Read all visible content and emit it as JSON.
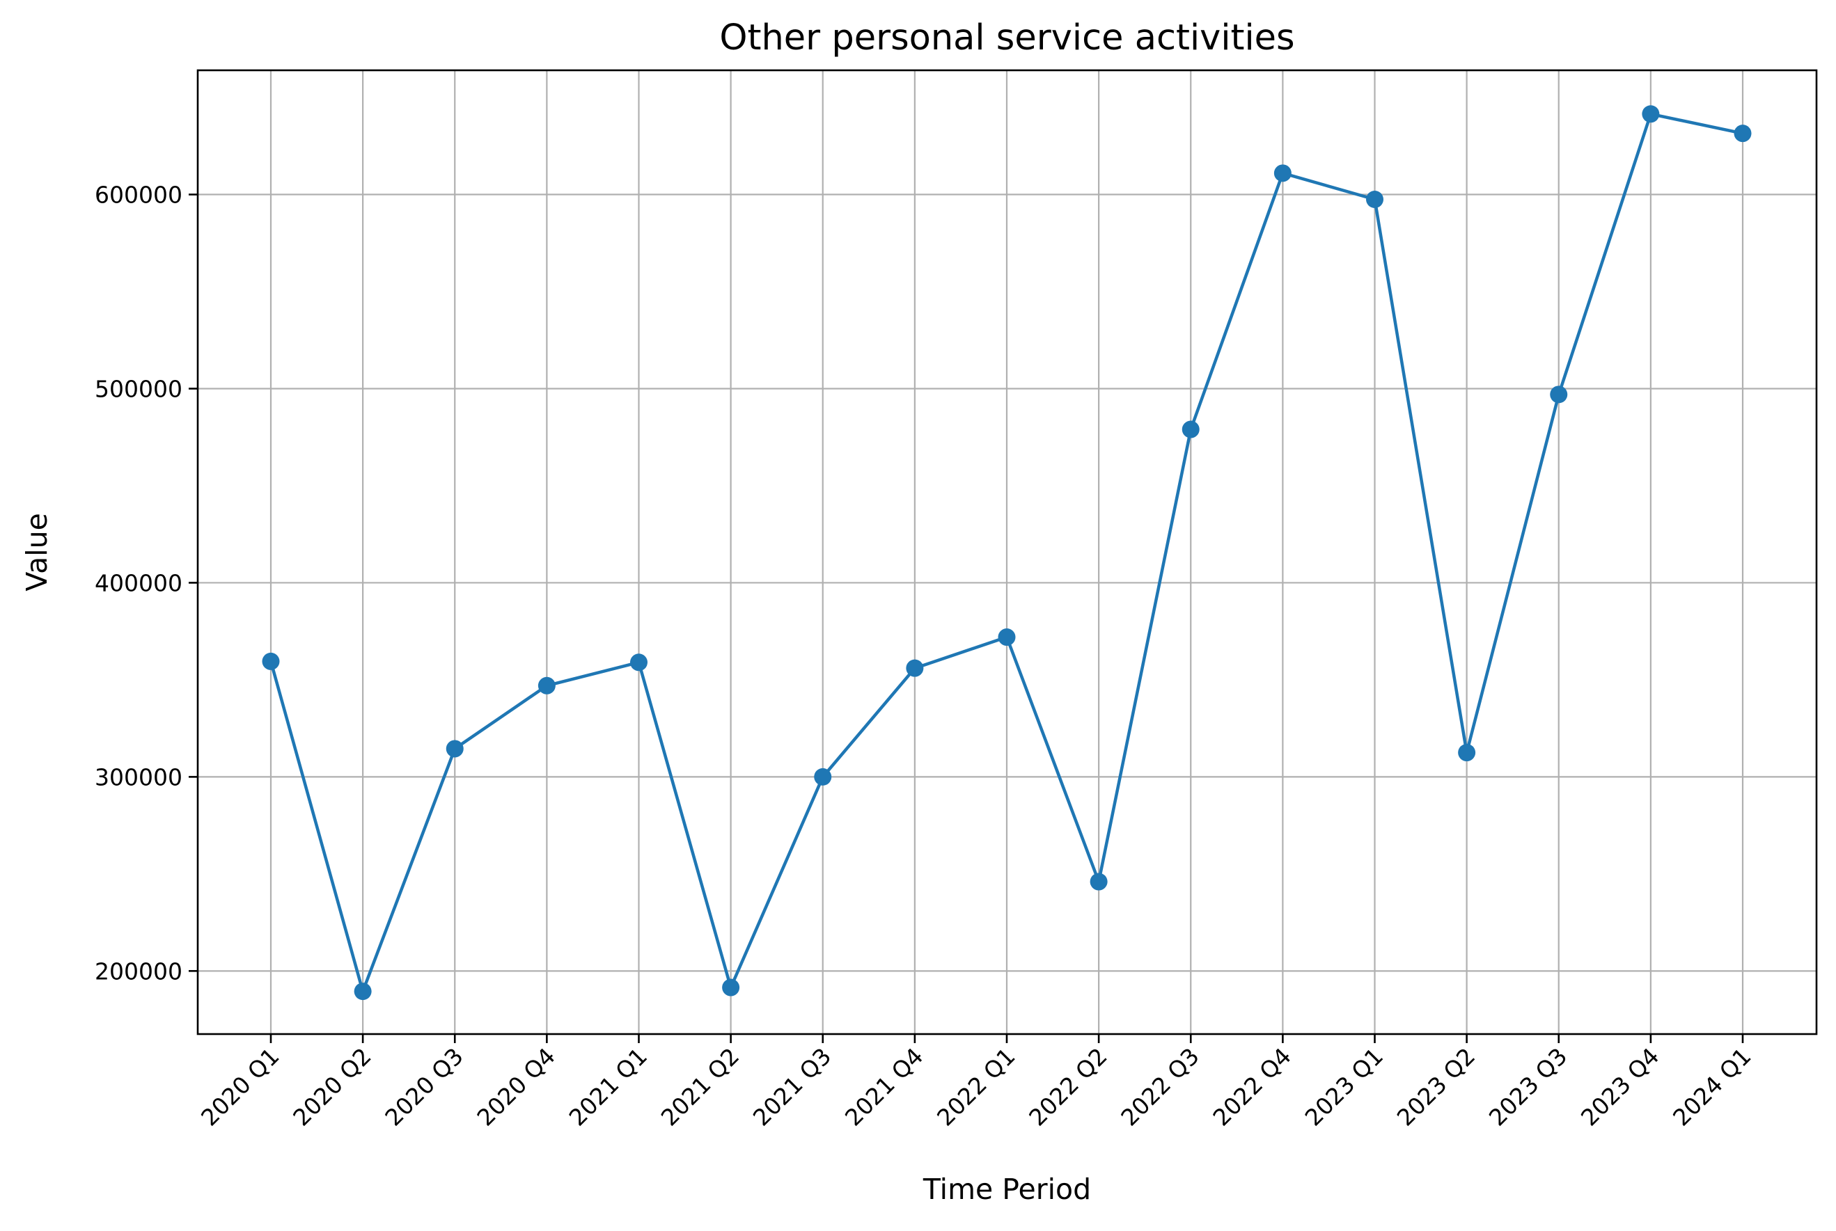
{
  "chart_data": {
    "type": "line",
    "title": "Other personal service activities",
    "xlabel": "Time Period",
    "ylabel": "Value",
    "categories": [
      "2020 Q1",
      "2020 Q2",
      "2020 Q3",
      "2020 Q4",
      "2021 Q1",
      "2021 Q2",
      "2021 Q3",
      "2021 Q4",
      "2022 Q1",
      "2022 Q2",
      "2022 Q3",
      "2022 Q4",
      "2023 Q1",
      "2023 Q2",
      "2023 Q3",
      "2023 Q4",
      "2024 Q1"
    ],
    "series": [
      {
        "values": [
          359500,
          189500,
          314500,
          347000,
          359000,
          191500,
          300000,
          356000,
          372000,
          246000,
          479000,
          611000,
          597500,
          312500,
          497000,
          641500,
          631500
        ],
        "color": "#1f77b4",
        "marker": "circle"
      }
    ],
    "ylim": [
      167500,
      664000
    ],
    "yticks": [
      200000,
      300000,
      400000,
      500000,
      600000
    ],
    "ytick_labels": [
      "200000",
      "300000",
      "400000",
      "500000",
      "600000"
    ],
    "grid": true,
    "legend": "none"
  }
}
